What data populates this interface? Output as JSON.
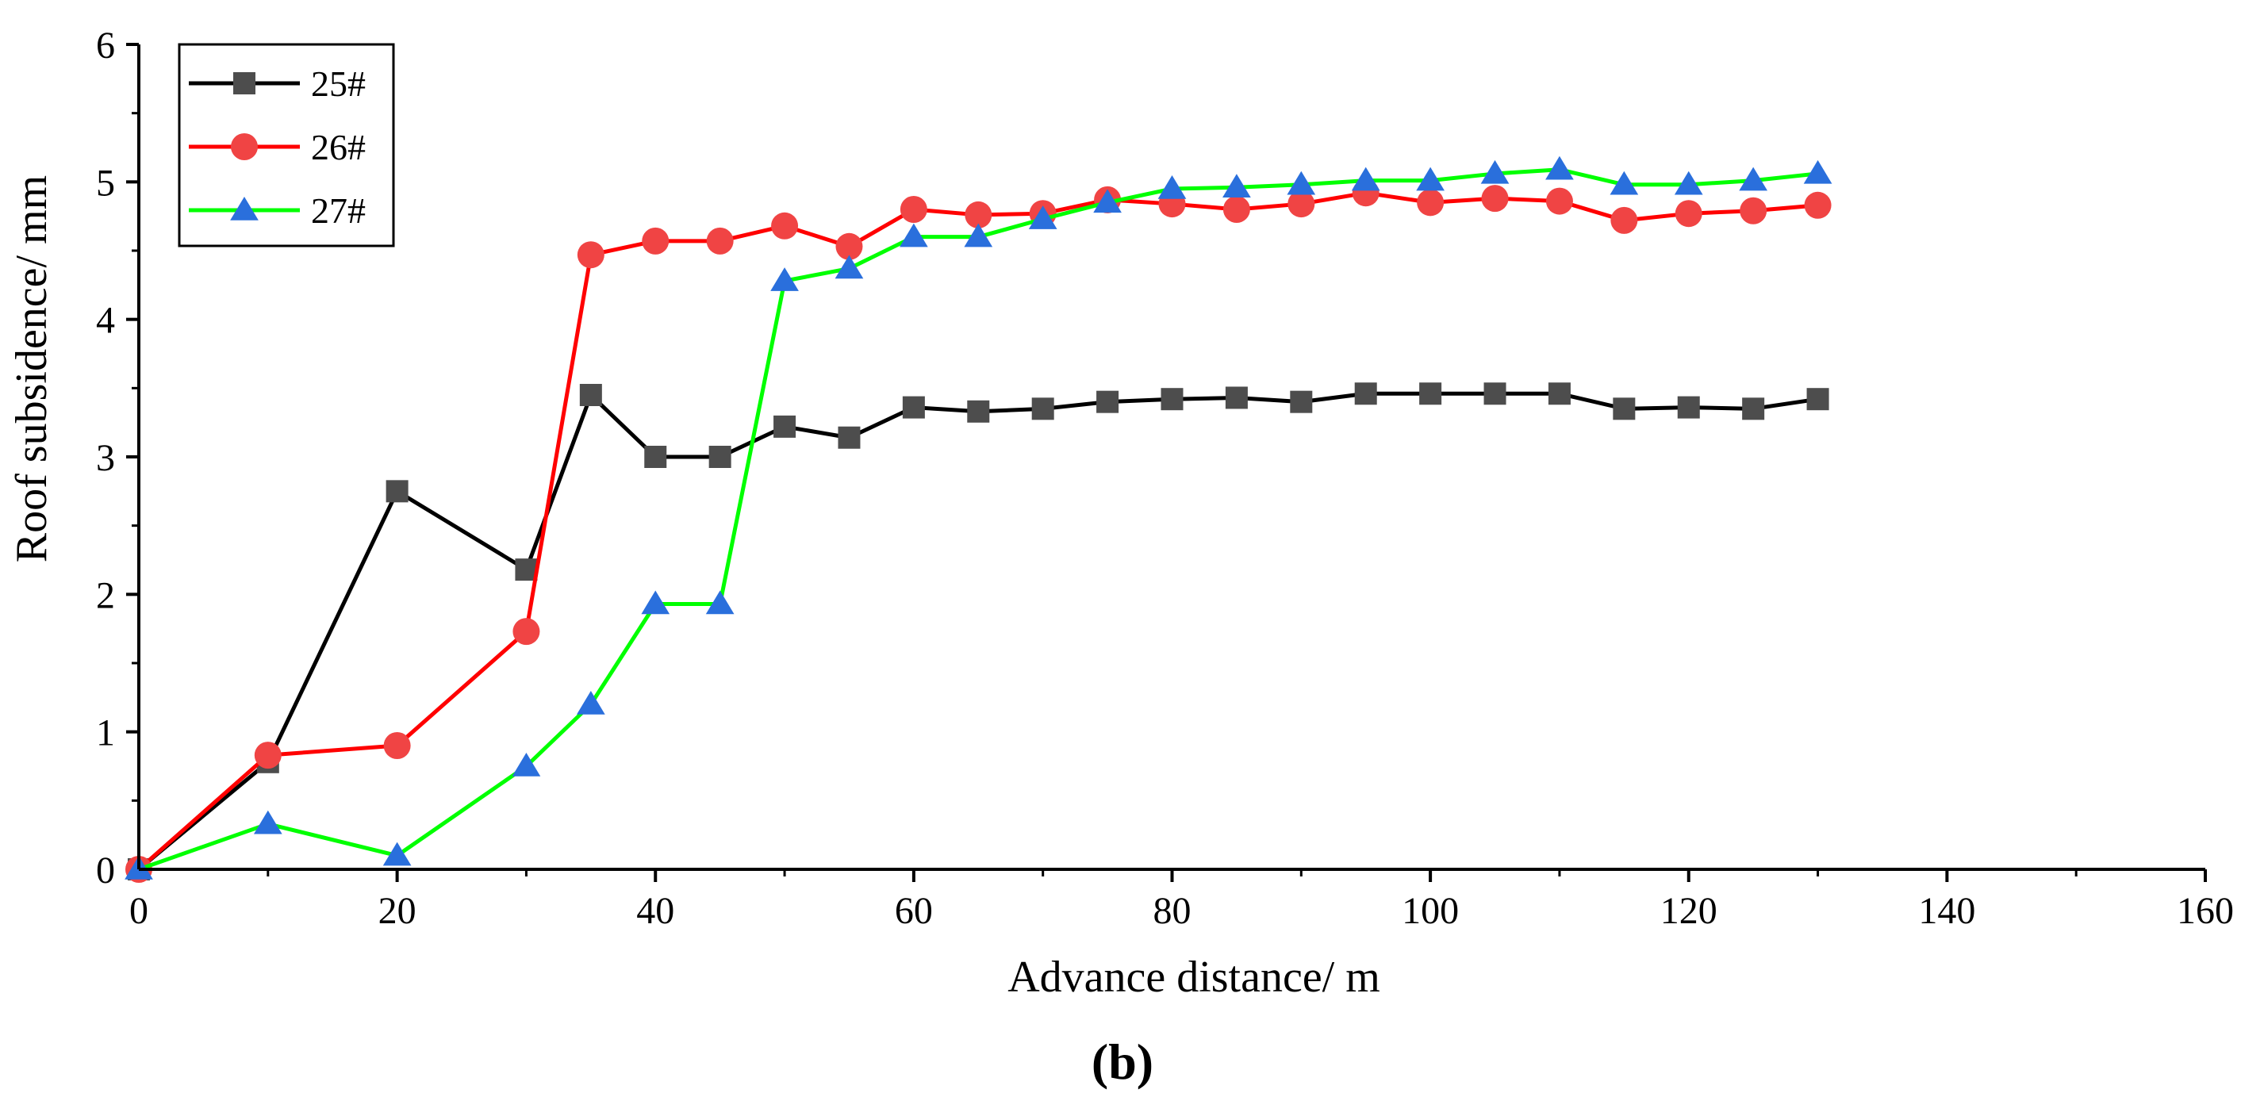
{
  "chart_data": {
    "type": "line",
    "title": "",
    "xlabel": "Advance distance/ m",
    "ylabel": "Roof subsidence/ mm",
    "caption": "(b)",
    "xlim": [
      0,
      160
    ],
    "ylim": [
      0,
      6
    ],
    "xticks": [
      "0",
      "20",
      "40",
      "60",
      "80",
      "100",
      "120",
      "140",
      "160"
    ],
    "yticks": [
      "0",
      "1",
      "2",
      "3",
      "4",
      "5",
      "6"
    ],
    "legend_position": "top-left",
    "x": [
      0,
      10,
      20,
      30,
      35,
      40,
      45,
      50,
      55,
      60,
      65,
      70,
      75,
      80,
      85,
      90,
      95,
      100,
      105,
      110,
      115,
      120,
      125,
      130
    ],
    "series": [
      {
        "name": "25#",
        "color": "#000000",
        "marker_color": "#4d4d4d",
        "marker": "square",
        "values": [
          0,
          0.78,
          2.75,
          2.18,
          3.45,
          3.0,
          3.0,
          3.22,
          3.14,
          3.36,
          3.33,
          3.35,
          3.4,
          3.42,
          3.43,
          3.4,
          3.46,
          3.46,
          3.46,
          3.46,
          3.35,
          3.36,
          3.35,
          3.42
        ]
      },
      {
        "name": "26#",
        "color": "#ff0000",
        "marker_color": "#f04444",
        "marker": "circle",
        "values": [
          0,
          0.83,
          0.9,
          1.73,
          4.47,
          4.57,
          4.57,
          4.68,
          4.53,
          4.8,
          4.76,
          4.77,
          4.87,
          4.84,
          4.8,
          4.84,
          4.92,
          4.85,
          4.88,
          4.86,
          4.72,
          4.77,
          4.79,
          4.83
        ]
      },
      {
        "name": "27#",
        "color": "#00ff00",
        "marker_color": "#2a6fdc",
        "marker": "triangle",
        "values": [
          0,
          0.33,
          0.1,
          0.75,
          1.2,
          1.93,
          1.93,
          4.28,
          4.37,
          4.6,
          4.6,
          4.73,
          4.85,
          4.95,
          4.96,
          4.98,
          5.01,
          5.01,
          5.06,
          5.09,
          4.98,
          4.98,
          5.01,
          5.06
        ]
      }
    ]
  }
}
